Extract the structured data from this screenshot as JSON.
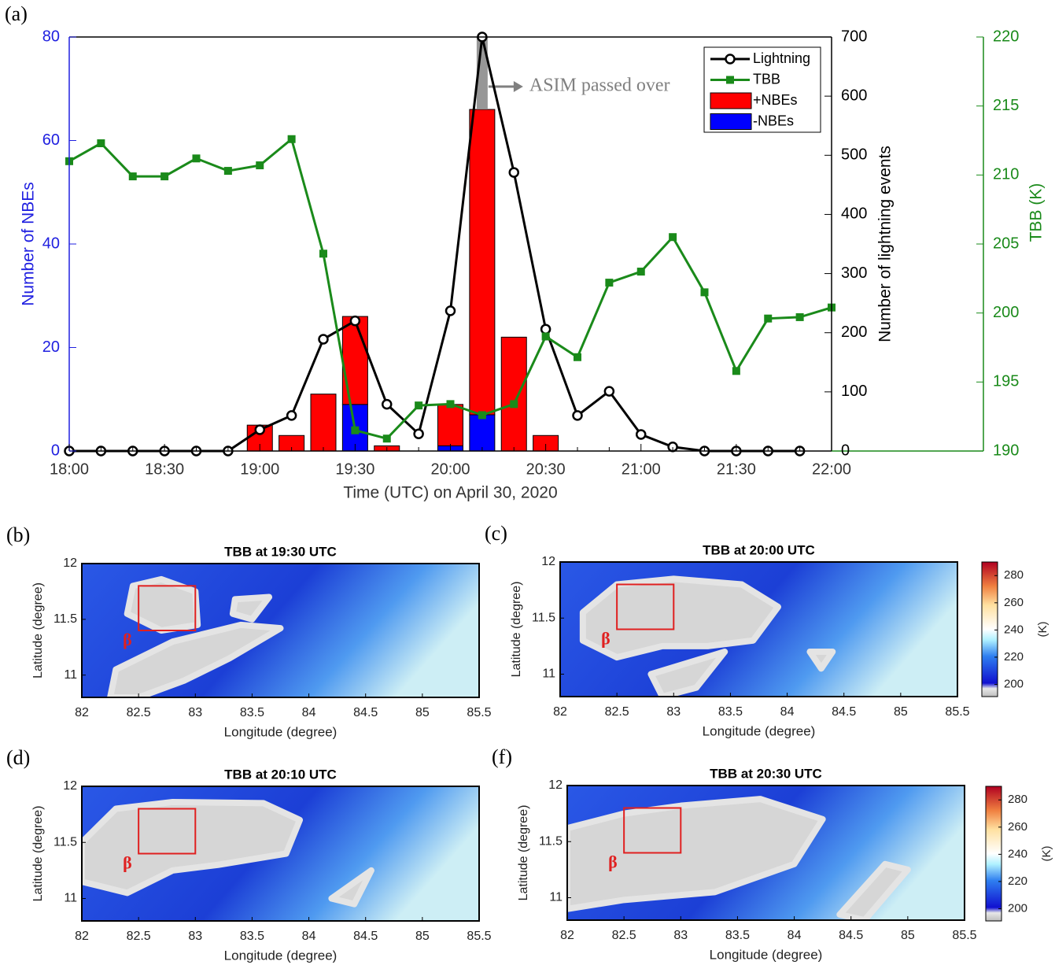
{
  "chart_data": [
    {
      "type": "combo",
      "panel_label": "(a)",
      "categories": [
        "18:00",
        null,
        null,
        "18:30",
        null,
        null,
        "19:00",
        null,
        null,
        "19:30",
        null,
        null,
        "20:00",
        null,
        null,
        "20:30",
        null,
        null,
        "21:00",
        null,
        null,
        "21:30",
        null,
        null,
        "22:00"
      ],
      "xlabel": "Time (UTC) on April 30, 2020",
      "ylabel": "Number of NBEs",
      "y2label": "Number of lightning events",
      "y3label": "TBB (K)",
      "ylim": [
        0,
        80
      ],
      "yticks": [
        0,
        20,
        40,
        60,
        80
      ],
      "y2lim": [
        0,
        700
      ],
      "y2ticks": [
        0,
        100,
        200,
        300,
        400,
        500,
        600,
        700
      ],
      "y3lim": [
        190,
        220
      ],
      "y3ticks": [
        190,
        195,
        200,
        205,
        210,
        215,
        220
      ],
      "annotation": "ASIM passed over",
      "legend": "upper right",
      "series": [
        {
          "name": "Lightning",
          "type": "line",
          "marker": "circle",
          "color": "#000000",
          "axis": "y2",
          "values": [
            0,
            0,
            0,
            0,
            0,
            0,
            36,
            60,
            189,
            220,
            79,
            29,
            237,
            700,
            471,
            206,
            60,
            101,
            28,
            7,
            0,
            0,
            0,
            0,
            null
          ]
        },
        {
          "name": "TBB",
          "type": "line",
          "marker": "square",
          "color": "#1a8a1a",
          "axis": "y3",
          "values": [
            211.0,
            212.3,
            209.9,
            209.9,
            211.2,
            210.3,
            210.7,
            212.6,
            204.3,
            191.5,
            190.9,
            193.3,
            193.4,
            192.6,
            193.4,
            198.3,
            196.8,
            202.2,
            203.0,
            205.5,
            201.5,
            195.8,
            199.6,
            199.7,
            200.4
          ]
        },
        {
          "name": "+NBEs",
          "type": "bar",
          "color": "#ff0000",
          "values": [
            0,
            0,
            0,
            0,
            0,
            0,
            5,
            3,
            11,
            17,
            1,
            0,
            8,
            59,
            22,
            3,
            0,
            0,
            0,
            0,
            0,
            0,
            0,
            0,
            0
          ]
        },
        {
          "name": "-NBEs",
          "type": "bar",
          "color": "#0000ff",
          "values": [
            0,
            0,
            0,
            0,
            0,
            0,
            0,
            0,
            0,
            9,
            0,
            0,
            1,
            7,
            0,
            0,
            0,
            0,
            0,
            0,
            0,
            0,
            0,
            0,
            0
          ]
        }
      ]
    },
    {
      "type": "map",
      "panel_label": "(b)",
      "title": "TBB at 19:30 UTC",
      "xlabel": "Longitude (degree)",
      "ylabel": "Latitude (degree)",
      "xlim": [
        82,
        85.5
      ],
      "xticks": [
        82,
        82.5,
        83,
        83.5,
        84,
        84.5,
        85,
        85.5
      ],
      "ylim": [
        10.8,
        12
      ],
      "yticks": [
        11,
        11.5,
        12
      ],
      "box": {
        "lon": [
          82.5,
          83
        ],
        "lat": [
          11.4,
          11.8
        ]
      },
      "annotation": "β"
    },
    {
      "type": "map",
      "panel_label": "(c)",
      "title": "TBB at 20:00 UTC",
      "xlabel": "Longitude (degree)",
      "ylabel": "Latitude (degree)",
      "xlim": [
        82,
        85.5
      ],
      "xticks": [
        82,
        82.5,
        83,
        83.5,
        84,
        84.5,
        85,
        85.5
      ],
      "ylim": [
        10.8,
        12
      ],
      "yticks": [
        11,
        11.5,
        12
      ],
      "box": {
        "lon": [
          82.5,
          83
        ],
        "lat": [
          11.4,
          11.8
        ]
      },
      "annotation": "β",
      "colorbar": {
        "label": "(K)",
        "lim": [
          191,
          290
        ],
        "ticks": [
          200,
          220,
          240,
          260,
          280
        ]
      }
    },
    {
      "type": "map",
      "panel_label": "(d)",
      "title": "TBB at 20:10 UTC",
      "xlabel": "Longitude (degree)",
      "ylabel": "Latitude (degree)",
      "xlim": [
        82,
        85.5
      ],
      "xticks": [
        82,
        82.5,
        83,
        83.5,
        84,
        84.5,
        85,
        85.5
      ],
      "ylim": [
        10.8,
        12
      ],
      "yticks": [
        11,
        11.5,
        12
      ],
      "box": {
        "lon": [
          82.5,
          83
        ],
        "lat": [
          11.4,
          11.8
        ]
      },
      "annotation": "β"
    },
    {
      "type": "map",
      "panel_label": "(f)",
      "title": "TBB at 20:30 UTC",
      "xlabel": "Longitude (degree)",
      "ylabel": "Latitude (degree)",
      "xlim": [
        82,
        85.5
      ],
      "xticks": [
        82,
        82.5,
        83,
        83.5,
        84,
        84.5,
        85,
        85.5
      ],
      "ylim": [
        10.8,
        12
      ],
      "yticks": [
        11,
        11.5,
        12
      ],
      "box": {
        "lon": [
          82.5,
          83
        ],
        "lat": [
          11.4,
          11.8
        ]
      },
      "annotation": "β",
      "colorbar": {
        "label": "(K)",
        "lim": [
          191,
          290
        ],
        "ticks": [
          200,
          220,
          240,
          260,
          280
        ]
      }
    }
  ]
}
